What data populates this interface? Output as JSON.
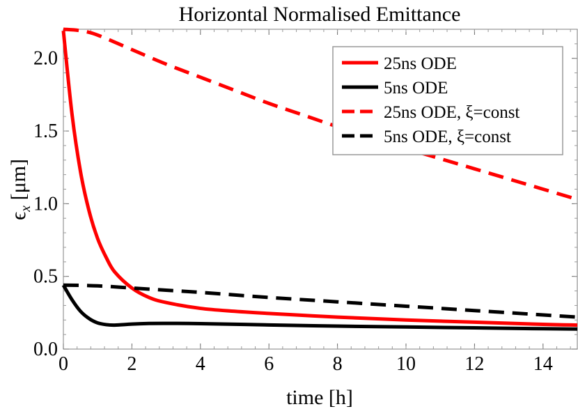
{
  "chart_data": {
    "type": "line",
    "title": "Horizontal Normalised Emittance",
    "xlabel": "time [h]",
    "ylabel": "εx [μm]",
    "ylabel_main": "ϵ",
    "ylabel_sub": "x",
    "ylabel_unit": " [μm]",
    "xlim": [
      0,
      15
    ],
    "ylim": [
      0,
      2.2
    ],
    "x_ticks": [
      0,
      2,
      4,
      6,
      8,
      10,
      12,
      14
    ],
    "x_tick_labels": [
      "0",
      "2",
      "4",
      "6",
      "8",
      "10",
      "12",
      "14"
    ],
    "y_ticks": [
      0,
      0.5,
      1.0,
      1.5,
      2.0
    ],
    "y_tick_labels": [
      "0.0",
      "0.5",
      "1.0",
      "1.5",
      "2.0"
    ],
    "grid": false,
    "legend_position": "top-right",
    "series": [
      {
        "name": "25ns ODE",
        "color": "#ff0000",
        "dash": "solid",
        "x": [
          0,
          0.25,
          0.5,
          0.75,
          1,
          1.25,
          1.5,
          2,
          2.5,
          3,
          4,
          5,
          6,
          8,
          10,
          12,
          14,
          15
        ],
        "y": [
          2.19,
          1.62,
          1.22,
          0.95,
          0.76,
          0.63,
          0.53,
          0.42,
          0.355,
          0.32,
          0.28,
          0.26,
          0.245,
          0.22,
          0.2,
          0.185,
          0.17,
          0.165
        ]
      },
      {
        "name": "5ns ODE",
        "color": "#000000",
        "dash": "solid",
        "x": [
          0,
          0.25,
          0.5,
          0.75,
          1,
          1.25,
          1.5,
          2,
          2.5,
          3,
          4,
          5,
          6,
          8,
          10,
          12,
          14,
          15
        ],
        "y": [
          0.44,
          0.34,
          0.26,
          0.21,
          0.18,
          0.168,
          0.165,
          0.172,
          0.176,
          0.177,
          0.175,
          0.171,
          0.166,
          0.158,
          0.152,
          0.146,
          0.14,
          0.138
        ]
      },
      {
        "name": "25ns ODE, ξ=const",
        "color": "#ff0000",
        "dash": "dashed",
        "x": [
          0,
          0.5,
          1,
          2,
          3,
          4,
          5,
          6,
          7,
          8,
          9,
          10,
          11,
          12,
          13,
          14,
          15
        ],
        "y": [
          2.2,
          2.19,
          2.16,
          2.06,
          1.96,
          1.87,
          1.78,
          1.69,
          1.61,
          1.53,
          1.46,
          1.38,
          1.31,
          1.24,
          1.17,
          1.1,
          1.03
        ]
      },
      {
        "name": "5ns ODE, ξ=const",
        "color": "#000000",
        "dash": "dashed",
        "x": [
          0,
          1,
          2,
          3,
          4,
          6,
          8,
          10,
          12,
          14,
          15
        ],
        "y": [
          0.44,
          0.435,
          0.42,
          0.405,
          0.39,
          0.355,
          0.325,
          0.295,
          0.265,
          0.235,
          0.22
        ]
      }
    ]
  }
}
